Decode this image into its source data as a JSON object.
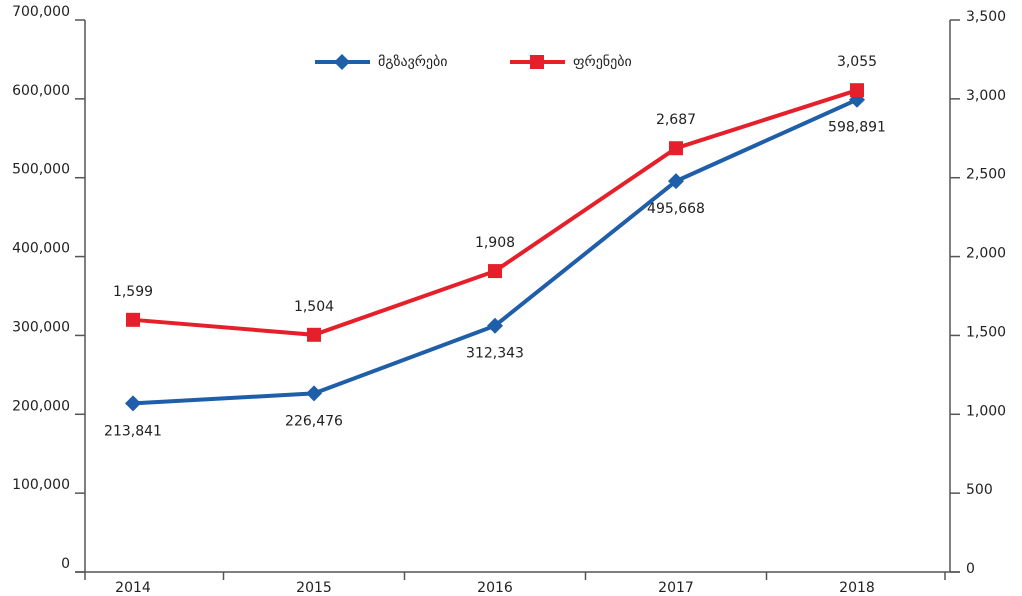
{
  "chart_data": {
    "type": "line",
    "categories": [
      "2014",
      "2015",
      "2016",
      "2017",
      "2018"
    ],
    "series": [
      {
        "name": "მგზავრები",
        "color": "#1f5ea8",
        "marker": "diamond",
        "axis": "y",
        "values": [
          213841,
          226476,
          312343,
          495668,
          598891
        ],
        "value_labels": [
          "213,841",
          "226,476",
          "312,343",
          "495,668",
          "598,891"
        ]
      },
      {
        "name": "ფრენები",
        "color": "#e5202b",
        "marker": "square",
        "axis": "y2",
        "values": [
          1599,
          1504,
          1908,
          2687,
          3055
        ],
        "value_labels": [
          "1,599",
          "1,504",
          "1,908",
          "2,687",
          "3,055"
        ]
      }
    ],
    "ylim": [
      0,
      700000
    ],
    "yticks": [
      0,
      {
        "value": 100000,
        "label": "100,000"
      },
      {
        "value": 200000,
        "label": "200,000"
      },
      {
        "value": 300000,
        "label": "300,000"
      },
      {
        "value": 400000,
        "label": "400,000"
      },
      {
        "value": 500000,
        "label": "500,000"
      },
      {
        "value": 600000,
        "label": "600,000"
      },
      {
        "value": 700000,
        "label": "700,000"
      }
    ],
    "y2lim": [
      0,
      3500
    ],
    "y2ticks": [
      0,
      500,
      {
        "value": 1000,
        "label": "1,000"
      },
      {
        "value": 1500,
        "label": "1,500"
      },
      {
        "value": 2000,
        "label": "2,000"
      },
      {
        "value": 2500,
        "label": "2,500"
      },
      {
        "value": 3000,
        "label": "3,000"
      },
      {
        "value": 3500,
        "label": "3,500"
      }
    ],
    "grid": false,
    "legend": "top"
  }
}
